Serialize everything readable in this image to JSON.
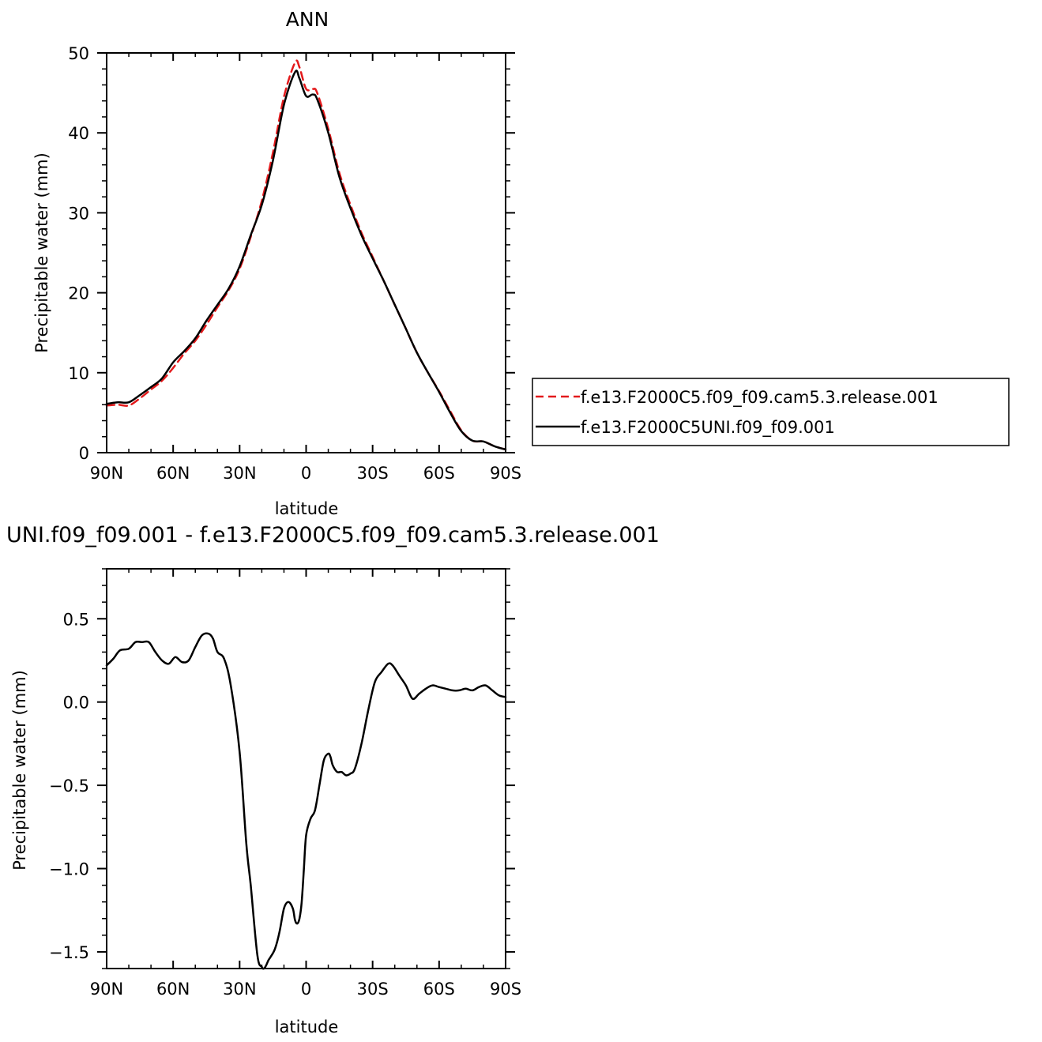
{
  "chart_data": [
    {
      "type": "line",
      "title": "ANN",
      "xlabel": "latitude",
      "ylabel": "Precipitable water (mm)",
      "xlim": [
        90,
        -90
      ],
      "ylim": [
        0,
        50
      ],
      "x_tick_values": [
        90,
        60,
        30,
        0,
        -30,
        -60,
        -90
      ],
      "x_tick_labels": [
        "90N",
        "60N",
        "30N",
        "0",
        "30S",
        "60S",
        "90S"
      ],
      "y_tick_values": [
        0,
        10,
        20,
        30,
        40,
        50
      ],
      "y_tick_labels": [
        "0",
        "10",
        "20",
        "30",
        "40",
        "50"
      ],
      "legend_position": "right",
      "series": [
        {
          "name": "f.e13.F2000C5.f09_f09.cam5.3.release.001",
          "color": "#e31a1c",
          "style": "dashed",
          "x": [
            90,
            85,
            80,
            75,
            70,
            65,
            60,
            55,
            50,
            45,
            40,
            35,
            30,
            25,
            20,
            15,
            10,
            5,
            3,
            0,
            -3,
            -5,
            -10,
            -15,
            -20,
            -25,
            -30,
            -35,
            -40,
            -45,
            -50,
            -55,
            -60,
            -65,
            -70,
            -75,
            -80,
            -85,
            -90
          ],
          "y": [
            5.9,
            6.0,
            5.9,
            6.8,
            7.9,
            9.0,
            10.6,
            12.4,
            14.0,
            16.0,
            18.2,
            20.3,
            23.0,
            27.0,
            31.5,
            37.5,
            44.5,
            48.8,
            48.2,
            45.5,
            45.5,
            45.0,
            40.5,
            35.0,
            31.0,
            27.5,
            24.5,
            21.5,
            18.5,
            15.5,
            12.5,
            10.0,
            7.7,
            5.2,
            2.8,
            1.5,
            1.4,
            0.8,
            0.4
          ]
        },
        {
          "name": "f.e13.F2000C5UNI.f09_f09.001",
          "color": "#000000",
          "style": "solid",
          "x": [
            90,
            85,
            80,
            75,
            70,
            65,
            60,
            55,
            50,
            45,
            40,
            35,
            30,
            25,
            20,
            15,
            10,
            5,
            3,
            0,
            -3,
            -5,
            -10,
            -15,
            -20,
            -25,
            -30,
            -35,
            -40,
            -45,
            -50,
            -55,
            -60,
            -65,
            -70,
            -75,
            -80,
            -85,
            -90
          ],
          "y": [
            6.1,
            6.3,
            6.3,
            7.2,
            8.2,
            9.3,
            11.3,
            12.7,
            14.3,
            16.5,
            18.5,
            20.5,
            23.3,
            27.2,
            31.0,
            36.5,
            43.5,
            47.6,
            46.8,
            44.6,
            44.8,
            44.2,
            40.0,
            34.5,
            30.6,
            27.2,
            24.3,
            21.5,
            18.5,
            15.5,
            12.5,
            10.0,
            7.6,
            5.0,
            2.7,
            1.5,
            1.4,
            0.8,
            0.4
          ]
        }
      ]
    },
    {
      "type": "line",
      "title": "UNI.f09_f09.001 - f.e13.F2000C5.f09_f09.cam5.3.release.001",
      "xlabel": "latitude",
      "ylabel": "Precipitable water (mm)",
      "xlim": [
        90,
        -90
      ],
      "ylim": [
        -1.6,
        0.8
      ],
      "x_tick_values": [
        90,
        60,
        30,
        0,
        -30,
        -60,
        -90
      ],
      "x_tick_labels": [
        "90N",
        "60N",
        "30N",
        "0",
        "30S",
        "60S",
        "90S"
      ],
      "y_tick_values": [
        0.5,
        0.0,
        -0.5,
        -1.0,
        -1.5
      ],
      "y_tick_labels": [
        "0.5",
        "0.0",
        "−0.5",
        "−1.0",
        "−1.5"
      ],
      "series": [
        {
          "color": "#000000",
          "style": "solid",
          "x": [
            90,
            87,
            84,
            80,
            77,
            74,
            71,
            68,
            65,
            62,
            59,
            56,
            53,
            50,
            47,
            44,
            42,
            40,
            37,
            34,
            30,
            27,
            25,
            22,
            20,
            19,
            18,
            17,
            16,
            14,
            12,
            10,
            8,
            6,
            5,
            4,
            3,
            2,
            1,
            0,
            -2,
            -4,
            -6,
            -8,
            -10,
            -11,
            -12,
            -14,
            -16,
            -18,
            -20,
            -22,
            -25,
            -28,
            -31,
            -34,
            -37,
            -39,
            -42,
            -45,
            -48,
            -51,
            -54,
            -57,
            -60,
            -63,
            -66,
            -69,
            -72,
            -75,
            -78,
            -81,
            -84,
            -87,
            -90
          ],
          "y": [
            0.22,
            0.26,
            0.31,
            0.32,
            0.36,
            0.36,
            0.36,
            0.3,
            0.25,
            0.23,
            0.27,
            0.24,
            0.25,
            0.33,
            0.4,
            0.41,
            0.38,
            0.3,
            0.26,
            0.1,
            -0.3,
            -0.85,
            -1.1,
            -1.52,
            -1.59,
            -1.6,
            -1.58,
            -1.55,
            -1.53,
            -1.48,
            -1.38,
            -1.24,
            -1.2,
            -1.24,
            -1.31,
            -1.33,
            -1.3,
            -1.2,
            -1.0,
            -0.8,
            -0.7,
            -0.65,
            -0.5,
            -0.35,
            -0.31,
            -0.33,
            -0.38,
            -0.42,
            -0.42,
            -0.44,
            -0.43,
            -0.4,
            -0.25,
            -0.05,
            0.12,
            0.18,
            0.23,
            0.22,
            0.16,
            0.1,
            0.02,
            0.05,
            0.08,
            0.1,
            0.09,
            0.08,
            0.07,
            0.07,
            0.08,
            0.07,
            0.09,
            0.1,
            0.07,
            0.04,
            0.03
          ]
        }
      ]
    }
  ]
}
